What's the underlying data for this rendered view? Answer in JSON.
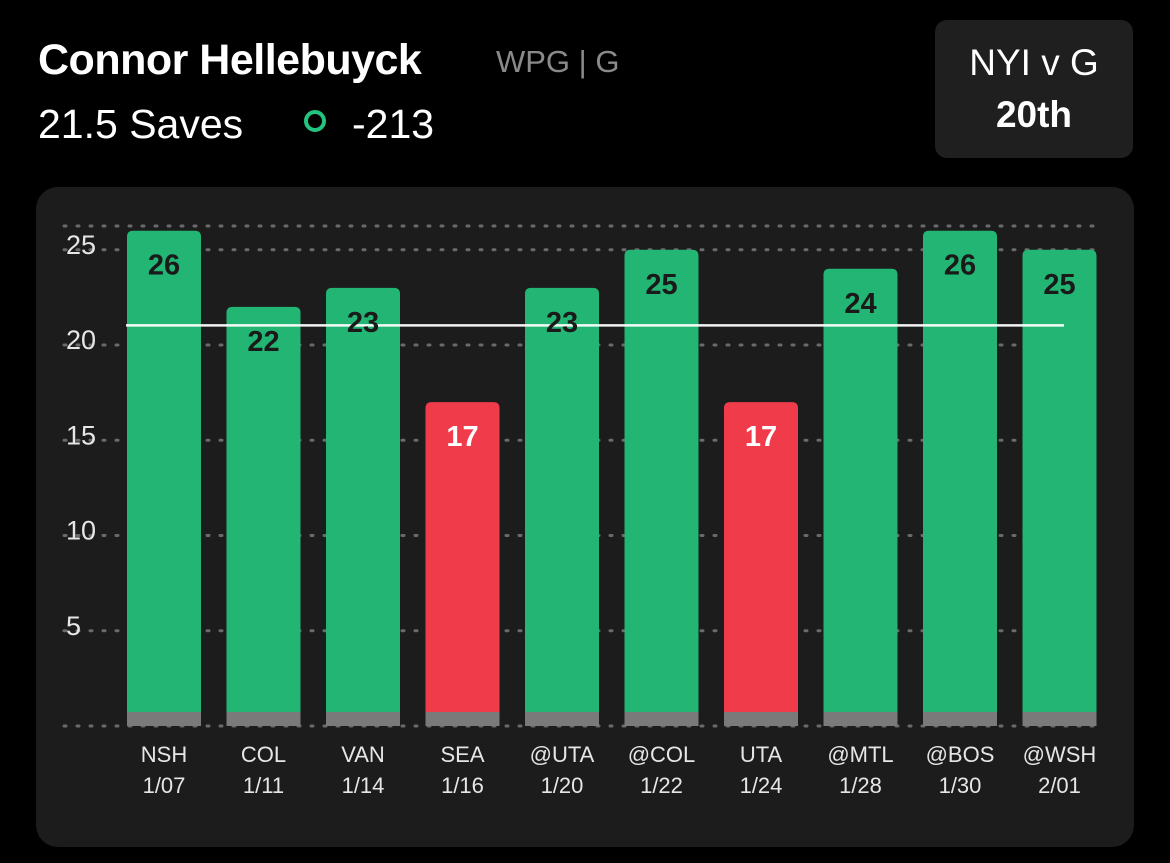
{
  "header": {
    "player_name": "Connor Hellebuyck",
    "team_position": "WPG | G",
    "prop_line": "21.5 Saves",
    "odds": "-213",
    "odds_indicator": "circle-icon"
  },
  "matchup": {
    "label": "NYI v G",
    "rank": "20th"
  },
  "colors": {
    "over": "#22b573",
    "under": "#ef3b4a",
    "odds_circle": "#22c47e",
    "line": "#ffffff"
  },
  "chart_data": {
    "type": "bar",
    "categories": [
      "NSH",
      "COL",
      "VAN",
      "SEA",
      "@UTA",
      "@COL",
      "UTA",
      "@MTL",
      "@BOS",
      "@WSH"
    ],
    "dates": [
      "1/07",
      "1/11",
      "1/14",
      "1/16",
      "1/20",
      "1/22",
      "1/24",
      "1/28",
      "1/30",
      "2/01"
    ],
    "values": [
      26,
      22,
      23,
      17,
      23,
      25,
      17,
      24,
      26,
      25
    ],
    "threshold": 21.5,
    "ylim": [
      0,
      25
    ],
    "yticks": [
      5,
      10,
      15,
      20,
      25
    ],
    "title": "",
    "xlabel": "",
    "ylabel": "",
    "grid": true
  }
}
